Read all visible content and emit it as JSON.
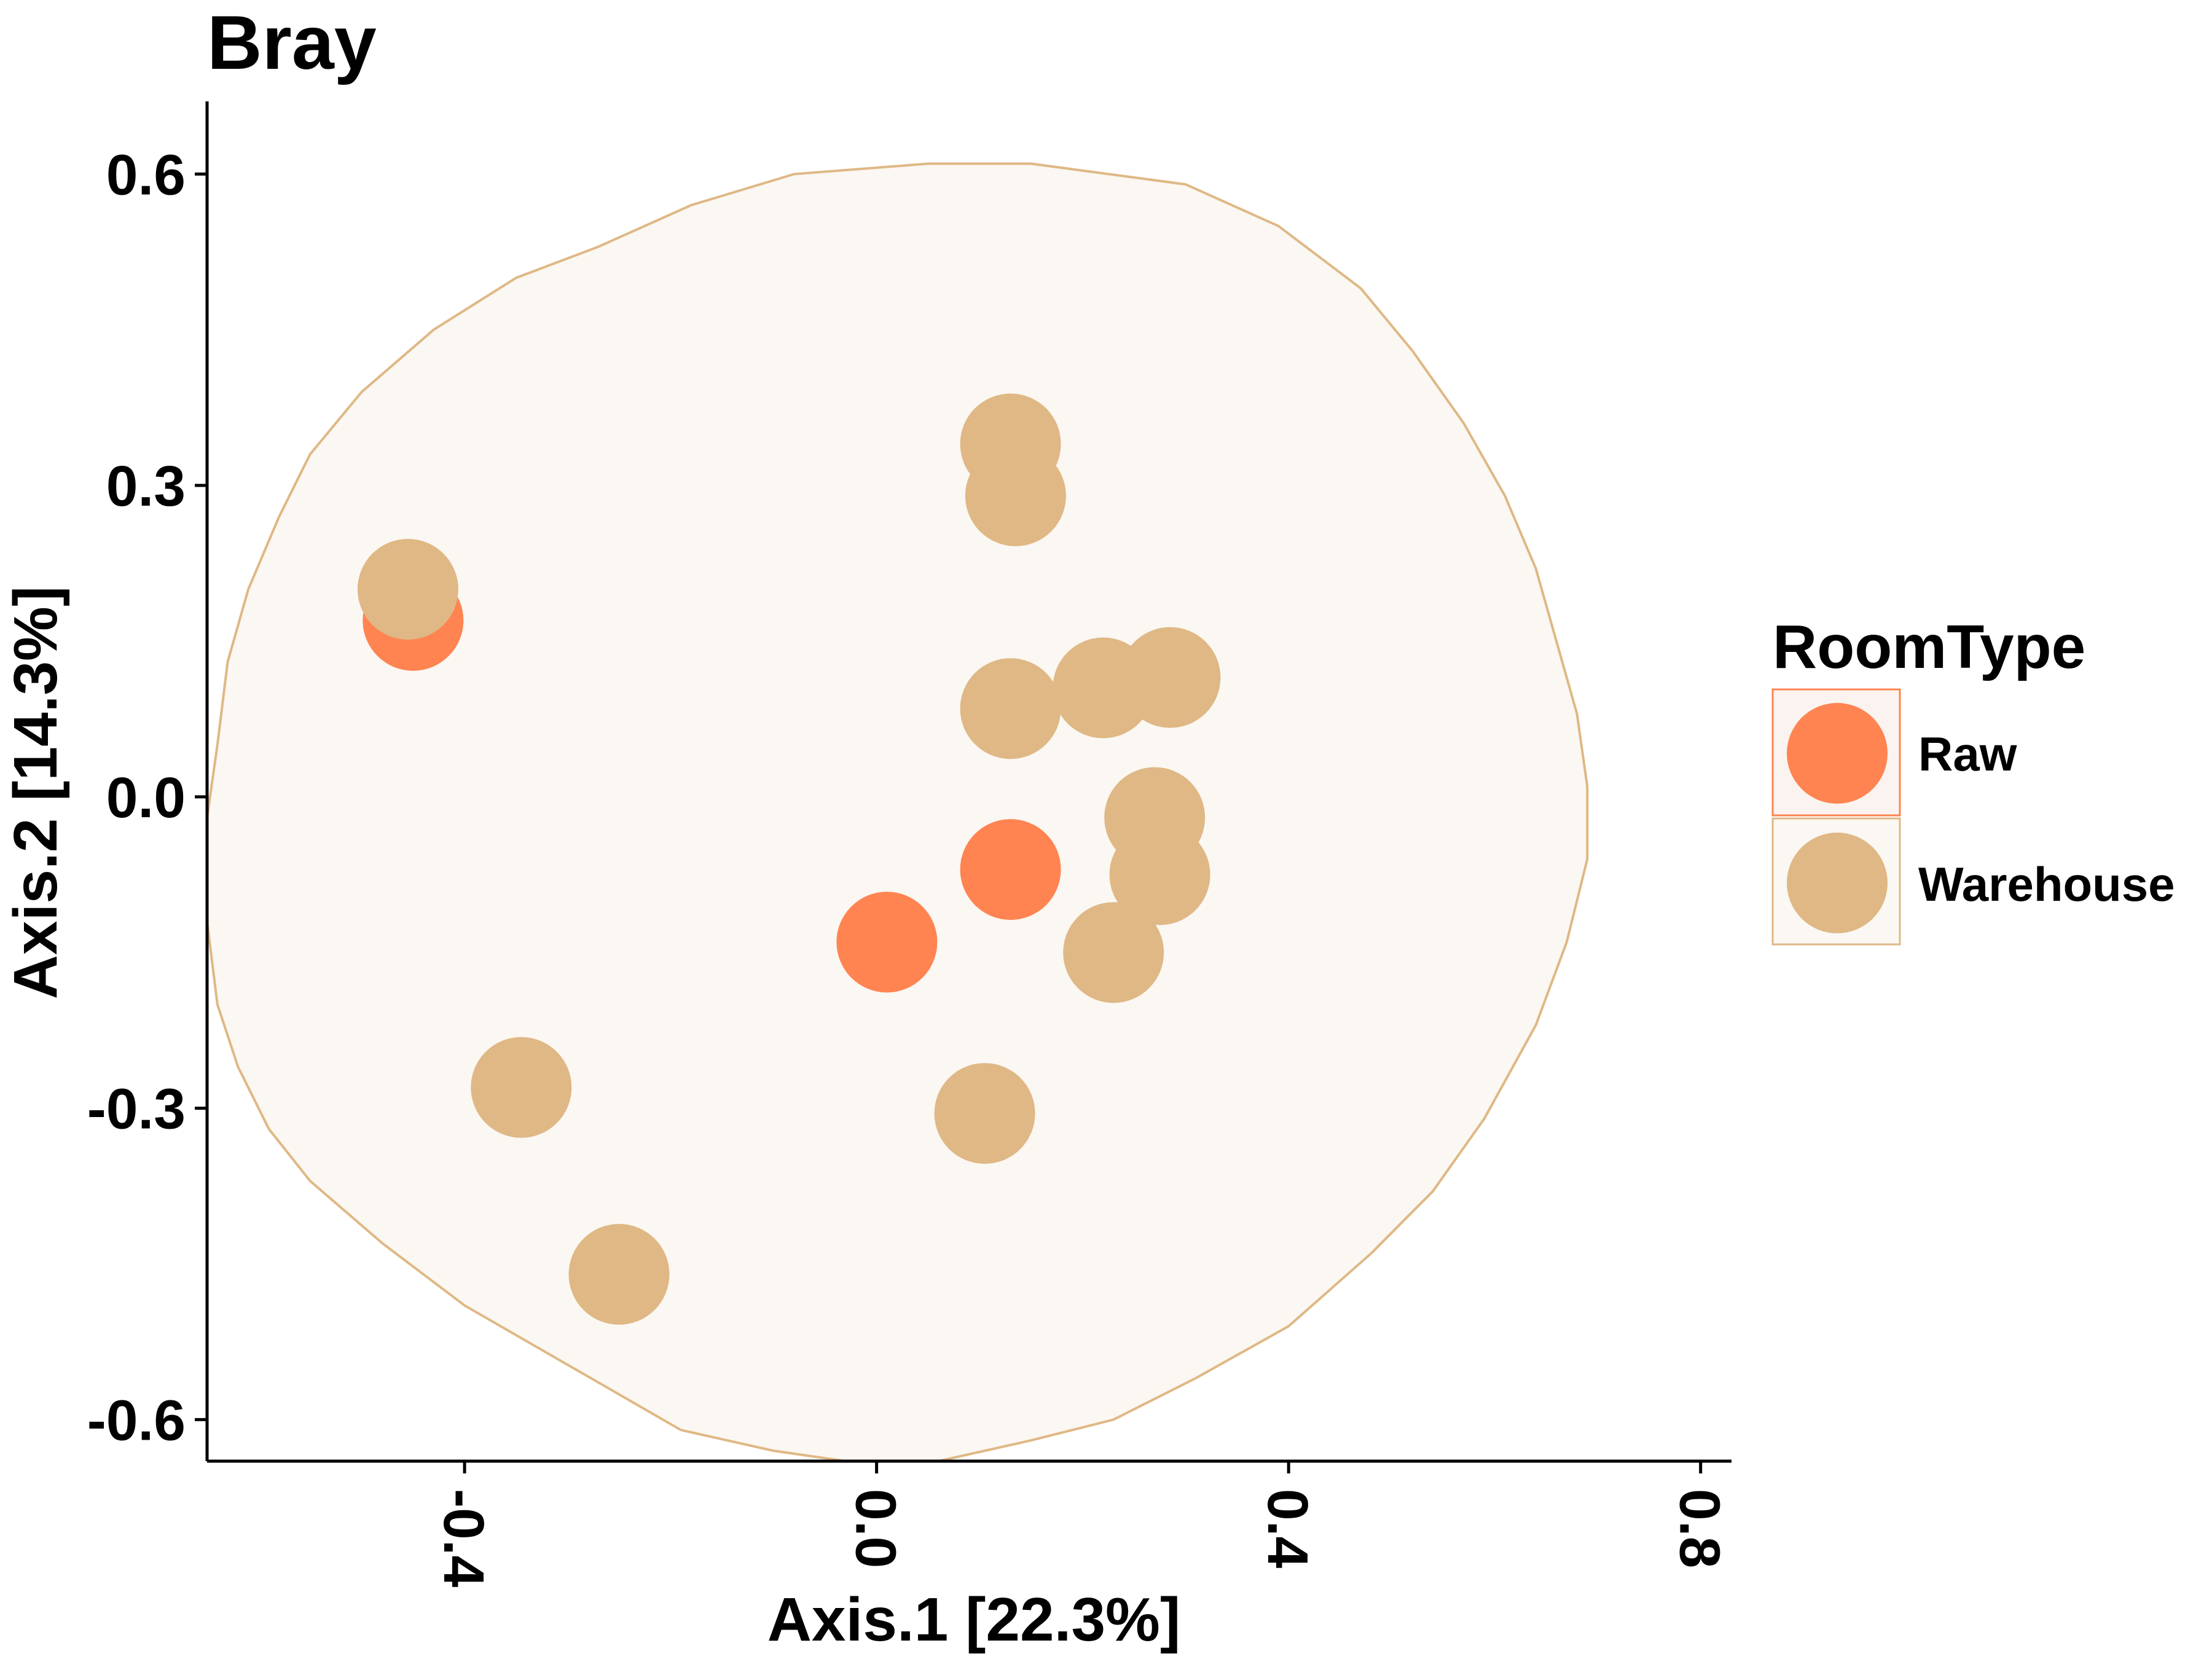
{
  "chart_data": {
    "type": "scatter",
    "title": "Bray",
    "xlabel": "Axis.1   [22.3%]",
    "ylabel": "Axis.2   [14.3%]",
    "xlim": [
      -0.65,
      0.83
    ],
    "ylim": [
      -0.64,
      0.67
    ],
    "x_ticks": [
      -0.4,
      0.0,
      0.4,
      0.8
    ],
    "x_tick_labels": [
      "-0.4",
      "0.0",
      "0.4",
      "0.8"
    ],
    "y_ticks": [
      0.6,
      0.3,
      0.0,
      -0.3,
      -0.6
    ],
    "y_tick_labels": [
      "0.6",
      "0.3",
      "0.0",
      "-0.3",
      "-0.6"
    ],
    "grid": false,
    "legend": {
      "title": "RoomType",
      "placement": "right",
      "entries": [
        {
          "label": "Raw",
          "color": "#FF8452"
        },
        {
          "label": "Warehouse",
          "color": "#DFB885"
        }
      ]
    },
    "series": [
      {
        "name": "Raw",
        "color": "#FF8452",
        "points": [
          {
            "x": -0.45,
            "y": 0.17
          },
          {
            "x": 0.13,
            "y": -0.07
          },
          {
            "x": 0.01,
            "y": -0.14
          }
        ]
      },
      {
        "name": "Warehouse",
        "color": "#DFB885",
        "points": [
          {
            "x": -0.455,
            "y": 0.2
          },
          {
            "x": 0.13,
            "y": 0.34
          },
          {
            "x": 0.135,
            "y": 0.29
          },
          {
            "x": 0.13,
            "y": 0.085
          },
          {
            "x": 0.22,
            "y": 0.105
          },
          {
            "x": 0.285,
            "y": 0.115
          },
          {
            "x": 0.27,
            "y": -0.02
          },
          {
            "x": 0.275,
            "y": -0.075
          },
          {
            "x": 0.23,
            "y": -0.15
          },
          {
            "x": 0.105,
            "y": -0.305
          },
          {
            "x": -0.345,
            "y": -0.28
          },
          {
            "x": -0.25,
            "y": -0.46
          }
        ]
      }
    ],
    "ellipse": {
      "series": "Warehouse",
      "stroke": "#DFB885",
      "fill": "#FBF7F2",
      "vertices": [
        [
          0.15,
          0.61
        ],
        [
          0.3,
          0.59
        ],
        [
          0.39,
          0.55
        ],
        [
          0.47,
          0.49
        ],
        [
          0.52,
          0.43
        ],
        [
          0.57,
          0.36
        ],
        [
          0.61,
          0.29
        ],
        [
          0.64,
          0.22
        ],
        [
          0.66,
          0.15
        ],
        [
          0.68,
          0.08
        ],
        [
          0.69,
          0.01
        ],
        [
          0.69,
          -0.06
        ],
        [
          0.67,
          -0.14
        ],
        [
          0.64,
          -0.22
        ],
        [
          0.59,
          -0.31
        ],
        [
          0.54,
          -0.38
        ],
        [
          0.48,
          -0.44
        ],
        [
          0.4,
          -0.51
        ],
        [
          0.31,
          -0.56
        ],
        [
          0.23,
          -0.6
        ],
        [
          0.15,
          -0.62
        ],
        [
          0.06,
          -0.64
        ],
        [
          -0.03,
          -0.64
        ],
        [
          -0.1,
          -0.63
        ],
        [
          -0.19,
          -0.61
        ],
        [
          -0.26,
          -0.57
        ],
        [
          -0.33,
          -0.53
        ],
        [
          -0.4,
          -0.49
        ],
        [
          -0.48,
          -0.43
        ],
        [
          -0.55,
          -0.37
        ],
        [
          -0.59,
          -0.32
        ],
        [
          -0.62,
          -0.26
        ],
        [
          -0.64,
          -0.2
        ],
        [
          -0.65,
          -0.12
        ],
        [
          -0.65,
          -0.02
        ],
        [
          -0.64,
          0.05
        ],
        [
          -0.63,
          0.13
        ],
        [
          -0.61,
          0.2
        ],
        [
          -0.58,
          0.27
        ],
        [
          -0.55,
          0.33
        ],
        [
          -0.5,
          0.39
        ],
        [
          -0.43,
          0.45
        ],
        [
          -0.35,
          0.5
        ],
        [
          -0.27,
          0.53
        ],
        [
          -0.18,
          0.57
        ],
        [
          -0.08,
          0.6
        ],
        [
          0.05,
          0.61
        ],
        [
          0.15,
          0.61
        ]
      ]
    }
  }
}
